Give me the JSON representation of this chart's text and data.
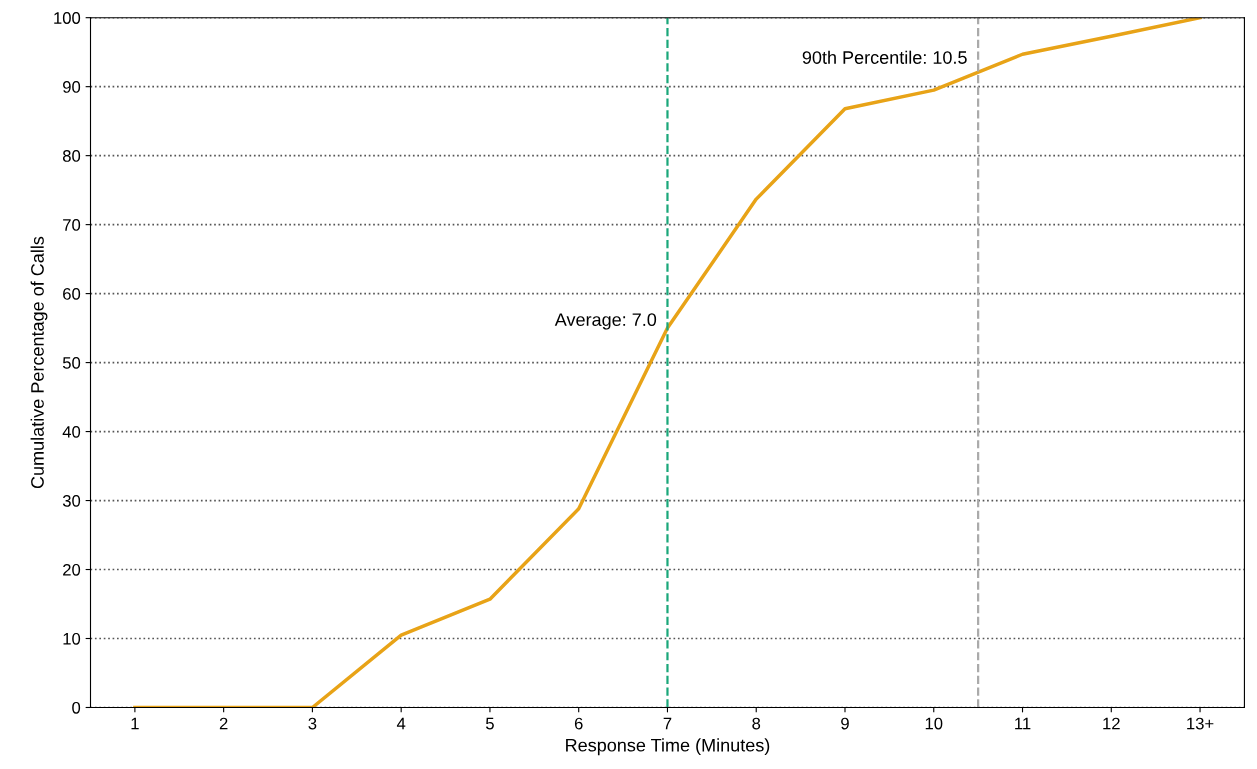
{
  "chart_data": {
    "type": "line",
    "xlabel": "Response Time (Minutes)",
    "ylabel": "Cumulative Percentage of Calls",
    "x": [
      1,
      2,
      3,
      4,
      5,
      6,
      7,
      8,
      9,
      10,
      11,
      12,
      13
    ],
    "series": [
      {
        "color": "#e8a317",
        "values": [
          0,
          0,
          0,
          10.5,
          15.7,
          28.8,
          55,
          73.7,
          86.8,
          89.5,
          94.7,
          97.3,
          100
        ]
      }
    ],
    "xlim": [
      0.5,
      13.5
    ],
    "xticks": [
      1,
      2,
      3,
      4,
      5,
      6,
      7,
      8,
      9,
      10,
      11,
      12,
      {
        "value": 13,
        "label": "13+"
      }
    ],
    "ylim": [
      0,
      100
    ],
    "yticks": [
      0,
      10,
      20,
      30,
      40,
      50,
      60,
      70,
      80,
      90,
      100
    ],
    "ref_lines": [
      {
        "axis": "x",
        "value": 7.0,
        "label": "Average: 7.0",
        "color": "#1aa77a",
        "line_style": "dashed"
      },
      {
        "axis": "x",
        "value": 10.5,
        "label": "90th Percentile: 10.5",
        "color": "#aaaaaa",
        "line_style": "dashed"
      }
    ],
    "grid": "y",
    "legend": false,
    "marker": "none",
    "line_style": "solid"
  }
}
